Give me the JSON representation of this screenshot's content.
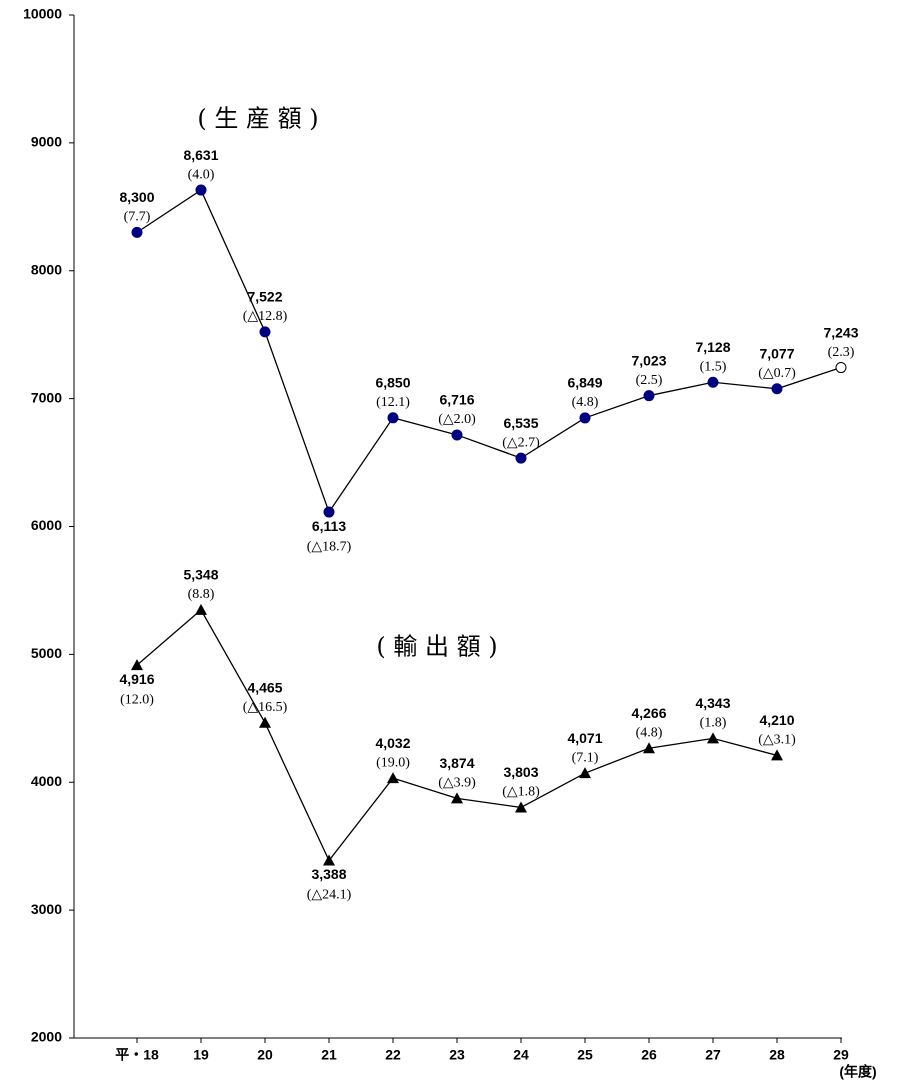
{
  "chart_data": {
    "type": "line",
    "categories": [
      "平・18",
      "19",
      "20",
      "21",
      "22",
      "23",
      "24",
      "25",
      "26",
      "27",
      "28",
      "29"
    ],
    "x_unit": "(年度)",
    "ylim": [
      2000,
      10000
    ],
    "yticks": [
      2000,
      3000,
      4000,
      5000,
      6000,
      7000,
      8000,
      9000,
      10000
    ],
    "series": [
      {
        "name": "( 生 産 額 )",
        "color": "#000080",
        "marker": "circle",
        "values": [
          8300,
          8631,
          7522,
          6113,
          6850,
          6716,
          6535,
          6849,
          7023,
          7128,
          7077,
          7243
        ],
        "value_labels": [
          "8,300",
          "8,631",
          "7,522",
          "6,113",
          "6,850",
          "6,716",
          "6,535",
          "6,849",
          "7,023",
          "7,128",
          "7,077",
          "7,243"
        ],
        "rate_labels": [
          "(7.7)",
          "(4.0)",
          "(△12.8)",
          "(△18.7)",
          "(12.1)",
          "(△2.0)",
          "(△2.7)",
          "(4.8)",
          "(2.5)",
          "(1.5)",
          "(△0.7)",
          "(2.3)"
        ]
      },
      {
        "name": "( 輸 出 額 )",
        "color": "#000000",
        "marker": "triangle",
        "values": [
          4916,
          5348,
          4465,
          3388,
          4032,
          3874,
          3803,
          4071,
          4266,
          4343,
          4210,
          null
        ],
        "value_labels": [
          "4,916",
          "5,348",
          "4,465",
          "3,388",
          "4,032",
          "3,874",
          "3,803",
          "4,071",
          "4,266",
          "4,343",
          "4,210",
          null
        ],
        "rate_labels": [
          "(12.0)",
          "(8.8)",
          "(△16.5)",
          "(△24.1)",
          "(19.0)",
          "(△3.9)",
          "(△1.8)",
          "(7.1)",
          "(4.8)",
          "(1.8)",
          "(△3.1)",
          null
        ]
      }
    ]
  }
}
